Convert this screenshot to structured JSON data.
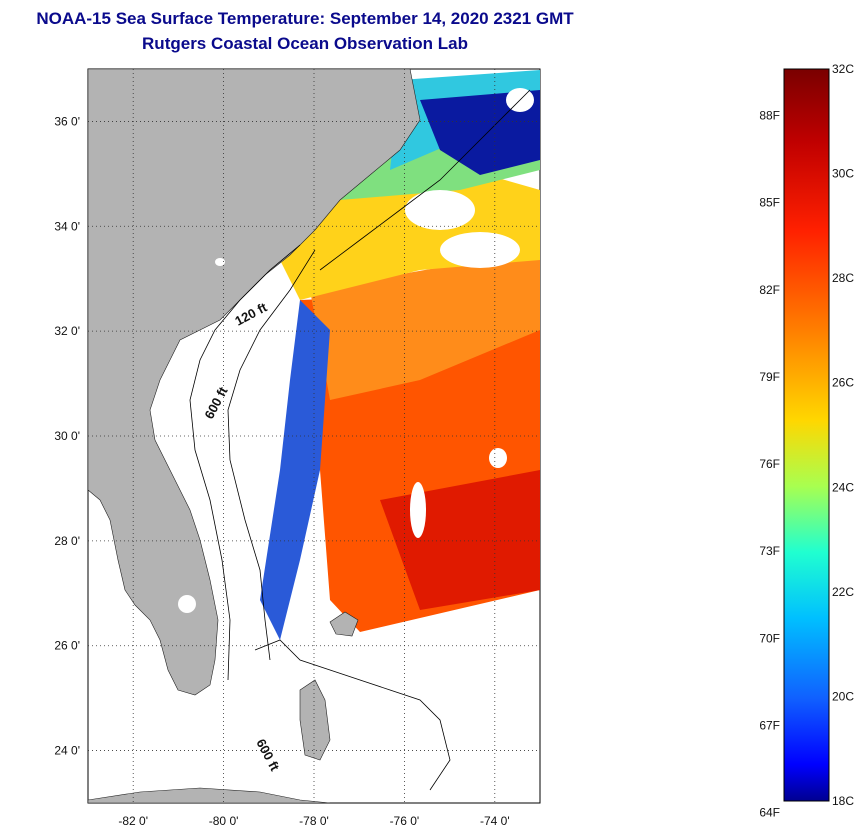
{
  "header": {
    "title": "NOAA-15 Sea Surface Temperature:  September 14, 2020 2321 GMT",
    "subtitle": "Rutgers Coastal Ocean Observation Lab"
  },
  "map": {
    "lat_labels": [
      "36 0'",
      "34 0'",
      "32 0'",
      "30 0'",
      "28 0'",
      "26 0'",
      "24 0'"
    ],
    "lon_labels": [
      "-82 0'",
      "-80 0'",
      "-78 0'",
      "-76 0'",
      "-74 0'"
    ],
    "lat_values": [
      36,
      34,
      32,
      30,
      28,
      26,
      24
    ],
    "lon_values": [
      -82,
      -80,
      -78,
      -76,
      -74
    ],
    "lat_range": [
      23.0,
      37.0
    ],
    "lon_range": [
      -83.0,
      -73.0
    ],
    "contour_labels": [
      "120 ft",
      "600 ft",
      "600 ft"
    ],
    "land_color": "#b3b3b3",
    "cloud_color": "#ffffff"
  },
  "colorbar": {
    "celsius_labels": [
      "32C",
      "30C",
      "28C",
      "26C",
      "24C",
      "22C",
      "20C",
      "18C"
    ],
    "fahrenheit_labels": [
      "88F",
      "85F",
      "82F",
      "79F",
      "76F",
      "73F",
      "70F",
      "67F",
      "64F"
    ],
    "celsius_range": [
      18,
      32
    ],
    "colors": [
      "#800000",
      "#ff0000",
      "#ff8000",
      "#ffff00",
      "#80ff80",
      "#00ffff",
      "#0080ff",
      "#0000ff",
      "#000080"
    ]
  }
}
